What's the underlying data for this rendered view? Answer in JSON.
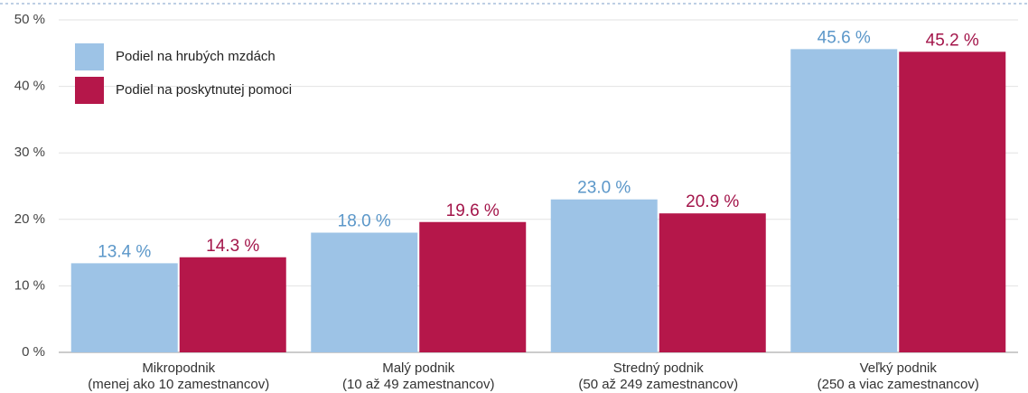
{
  "chart_data": {
    "type": "bar",
    "categories": [
      "Mikropodnik\n(menej ako 10 zamestnancov)",
      "Malý podnik\n(10 až 49 zamestnancov)",
      "Stredný podnik\n(50 až 249 zamestnancov)",
      "Veľký podnik\n(250 a viac zamestnancov)"
    ],
    "series": [
      {
        "name": "Podiel na hrubých mzdách",
        "color": "#9dc3e6",
        "label_color": "#5b97c9",
        "values": [
          13.4,
          18.0,
          23.0,
          45.6
        ],
        "value_labels": [
          "13.4 %",
          "18.0 %",
          "23.0 %",
          "45.6 %"
        ]
      },
      {
        "name": "Podiel na poskytnutej pomoci",
        "color": "#b5174a",
        "label_color": "#a3154a",
        "values": [
          14.3,
          19.6,
          20.9,
          45.2
        ],
        "value_labels": [
          "14.3 %",
          "19.6 %",
          "20.9 %",
          "45.2 %"
        ]
      }
    ],
    "ylim": [
      0,
      50
    ],
    "yticks": [
      {
        "value": 0,
        "label": "0 %"
      },
      {
        "value": 10,
        "label": "10 %"
      },
      {
        "value": 20,
        "label": "20 %"
      },
      {
        "value": 30,
        "label": "30 %"
      },
      {
        "value": 40,
        "label": "40 %"
      },
      {
        "value": 50,
        "label": "50 %"
      }
    ],
    "grid": true,
    "legend": "top-left"
  }
}
